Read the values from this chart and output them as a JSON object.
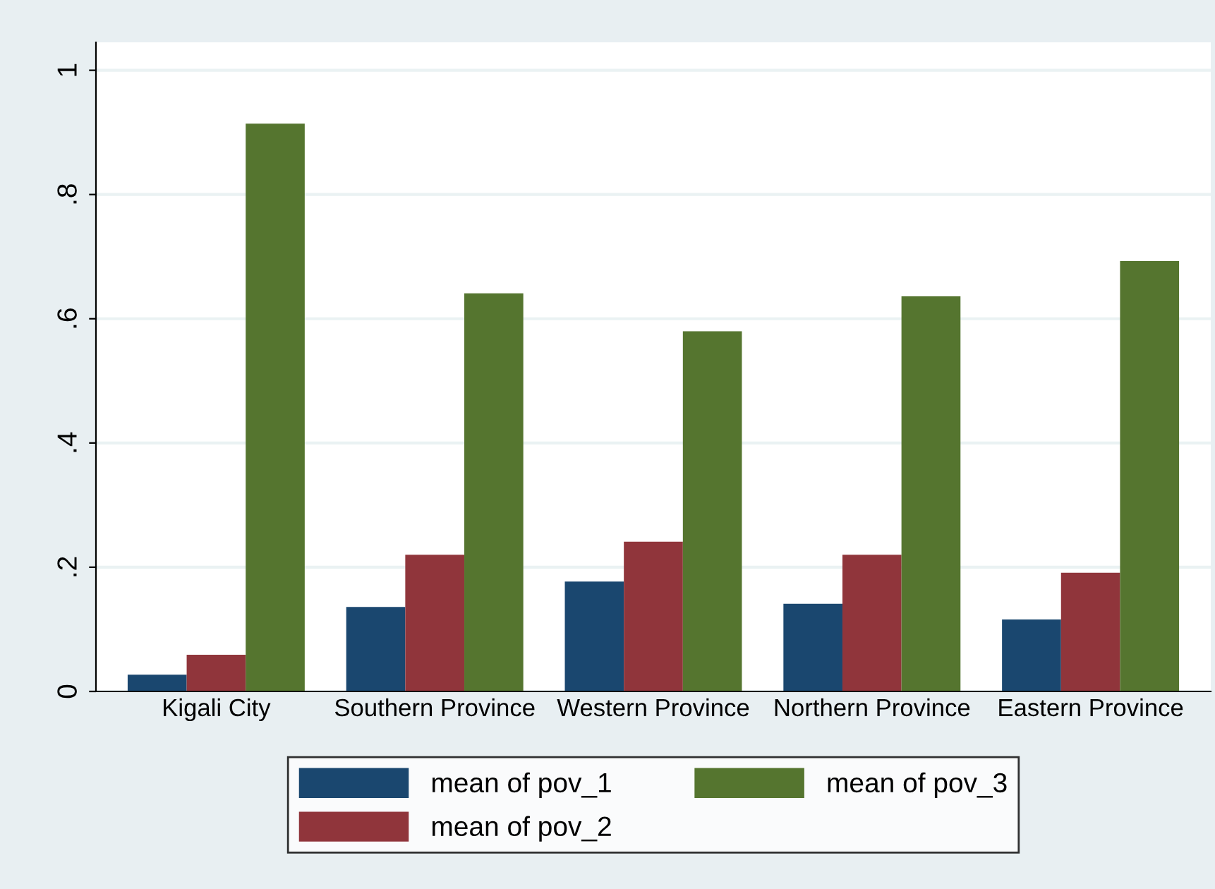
{
  "chart_data": {
    "type": "bar",
    "categories": [
      "Kigali City",
      "Southern Province",
      "Western Province",
      "Northern Province",
      "Eastern Province"
    ],
    "series": [
      {
        "name": "mean of pov_1",
        "color": "#1a476f",
        "values": [
          0.027,
          0.136,
          0.177,
          0.141,
          0.116
        ]
      },
      {
        "name": "mean of pov_2",
        "color": "#90353b",
        "values": [
          0.059,
          0.22,
          0.241,
          0.22,
          0.191
        ]
      },
      {
        "name": "mean of pov_3",
        "color": "#55752f",
        "values": [
          0.914,
          0.641,
          0.58,
          0.636,
          0.693
        ]
      }
    ],
    "ylim": [
      0,
      1.045
    ],
    "yticks": [
      0,
      {
        "value": 0.2,
        "label": ".2"
      },
      {
        "value": 0.4,
        "label": ".4"
      },
      {
        "value": 0.6,
        "label": ".6"
      },
      {
        "value": 0.8,
        "label": ".8"
      },
      1
    ],
    "grid": "y",
    "legend": "bottom"
  }
}
